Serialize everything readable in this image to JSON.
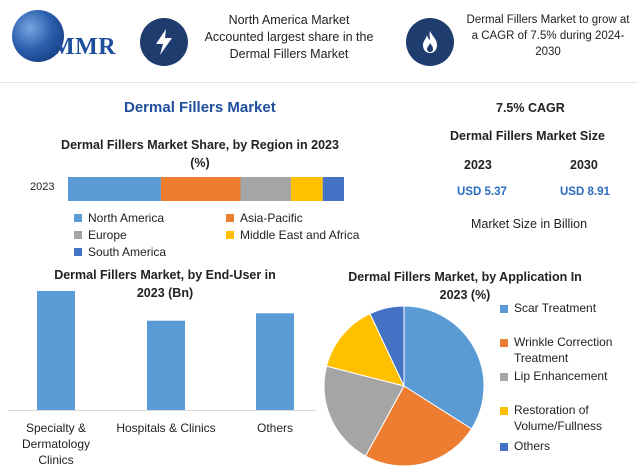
{
  "header": {
    "logo_text": "MMR",
    "box1_text": "North America Market Accounted largest share in the Dermal Fillers Market",
    "box2_text": "Dermal Fillers Market to grow at a CAGR of 7.5% during 2024-2030",
    "icon1": "lightning-icon",
    "icon2": "flame-icon"
  },
  "main_title": "Dermal Fillers Market",
  "summary": {
    "cagr": "7.5% CAGR",
    "size_title": "Dermal Fillers Market Size",
    "year1": "2023",
    "year2": "2030",
    "value1": "USD 5.37",
    "value2": "USD 8.91",
    "note": "Market Size in Billion"
  },
  "colors": {
    "north_america": "#5b9bd5",
    "asia_pacific": "#ed7d31",
    "europe": "#a5a5a5",
    "middle_east_africa": "#ffc000",
    "south_america": "#4472c4",
    "icon_bg": "#1f3c6e",
    "title_blue": "#1f4e9c"
  },
  "chart_data": [
    {
      "type": "bar",
      "orientation": "horizontal-stacked",
      "title": "Dermal Fillers Market Share, by Region in 2023 (%)",
      "categories": [
        "2023"
      ],
      "series": [
        {
          "name": "North America",
          "values": [
            35
          ]
        },
        {
          "name": "Asia-Pacific",
          "values": [
            30
          ]
        },
        {
          "name": "Europe",
          "values": [
            19
          ]
        },
        {
          "name": "Middle East and Africa",
          "values": [
            12
          ]
        },
        {
          "name": "South America",
          "values": [
            8
          ]
        }
      ],
      "legend": "bottom"
    },
    {
      "type": "bar",
      "title": "Dermal Fillers Market, by End-User in 2023 (Bn)",
      "categories": [
        "Specialty & Dermatology Clinics",
        "Hospitals & Clinics",
        "Others"
      ],
      "category_lines": [
        [
          "Specialty &",
          "Dermatology",
          "Clinics"
        ],
        [
          "Hospitals & Clinics"
        ],
        [
          "Others"
        ]
      ],
      "values": [
        2.4,
        1.8,
        1.95
      ],
      "ylim": [
        0,
        2.5
      ],
      "grid": false
    },
    {
      "type": "pie",
      "title": "Dermal Fillers Market, by Application In 2023 (%)",
      "labels": [
        "Scar Treatment",
        "Wrinkle Correction Treatment",
        "Lip Enhancement",
        "Restoration of Volume/Fullness",
        "Others"
      ],
      "label_lines": [
        [
          "Scar Treatment"
        ],
        [
          "Wrinkle Correction",
          "Treatment"
        ],
        [
          "Lip Enhancement"
        ],
        [
          "Restoration of",
          "Volume/Fullness"
        ],
        [
          "Others"
        ]
      ],
      "values": [
        34,
        24,
        21,
        14,
        7
      ],
      "legend": "right"
    }
  ]
}
